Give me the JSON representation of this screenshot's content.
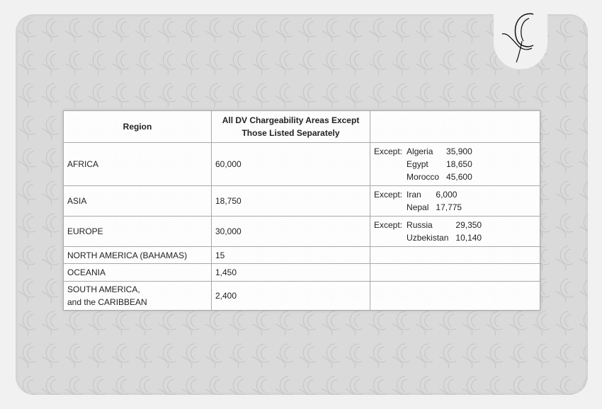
{
  "table": {
    "headers": [
      "Region",
      "All DV Chargeability Areas Except Those Listed Separately",
      ""
    ],
    "header_line1": "All DV Chargeability Areas Except",
    "header_line2": "Those Listed Separately",
    "except_label": "Except:",
    "rows": [
      {
        "region": "AFRICA",
        "value": "60,000",
        "exceptions": [
          {
            "country": "Algeria",
            "value": "35,900"
          },
          {
            "country": "Egypt",
            "value": "18,650"
          },
          {
            "country": "Morocco",
            "value": "45,600"
          }
        ]
      },
      {
        "region": "ASIA",
        "value": "18,750",
        "exceptions": [
          {
            "country": "Iran",
            "value": "6,000"
          },
          {
            "country": "Nepal",
            "value": "17,775"
          }
        ]
      },
      {
        "region": "EUROPE",
        "value": "30,000",
        "exceptions": [
          {
            "country": "Russia",
            "value": "29,350"
          },
          {
            "country": "Uzbekistan",
            "value": "10,140"
          }
        ]
      },
      {
        "region": "NORTH AMERICA (BAHAMAS)",
        "value": "15",
        "exceptions": []
      },
      {
        "region": "OCEANIA",
        "value": "1,450",
        "exceptions": []
      },
      {
        "region": "SOUTH AMERICA,",
        "region_line2": "and the CARIBBEAN",
        "value": "2,400",
        "exceptions": []
      }
    ]
  },
  "logo": {
    "icon": "bird-crescent-logo"
  },
  "colors": {
    "page": "#f2f1f1",
    "card": "#dadada",
    "border": "#a9a9a9"
  }
}
